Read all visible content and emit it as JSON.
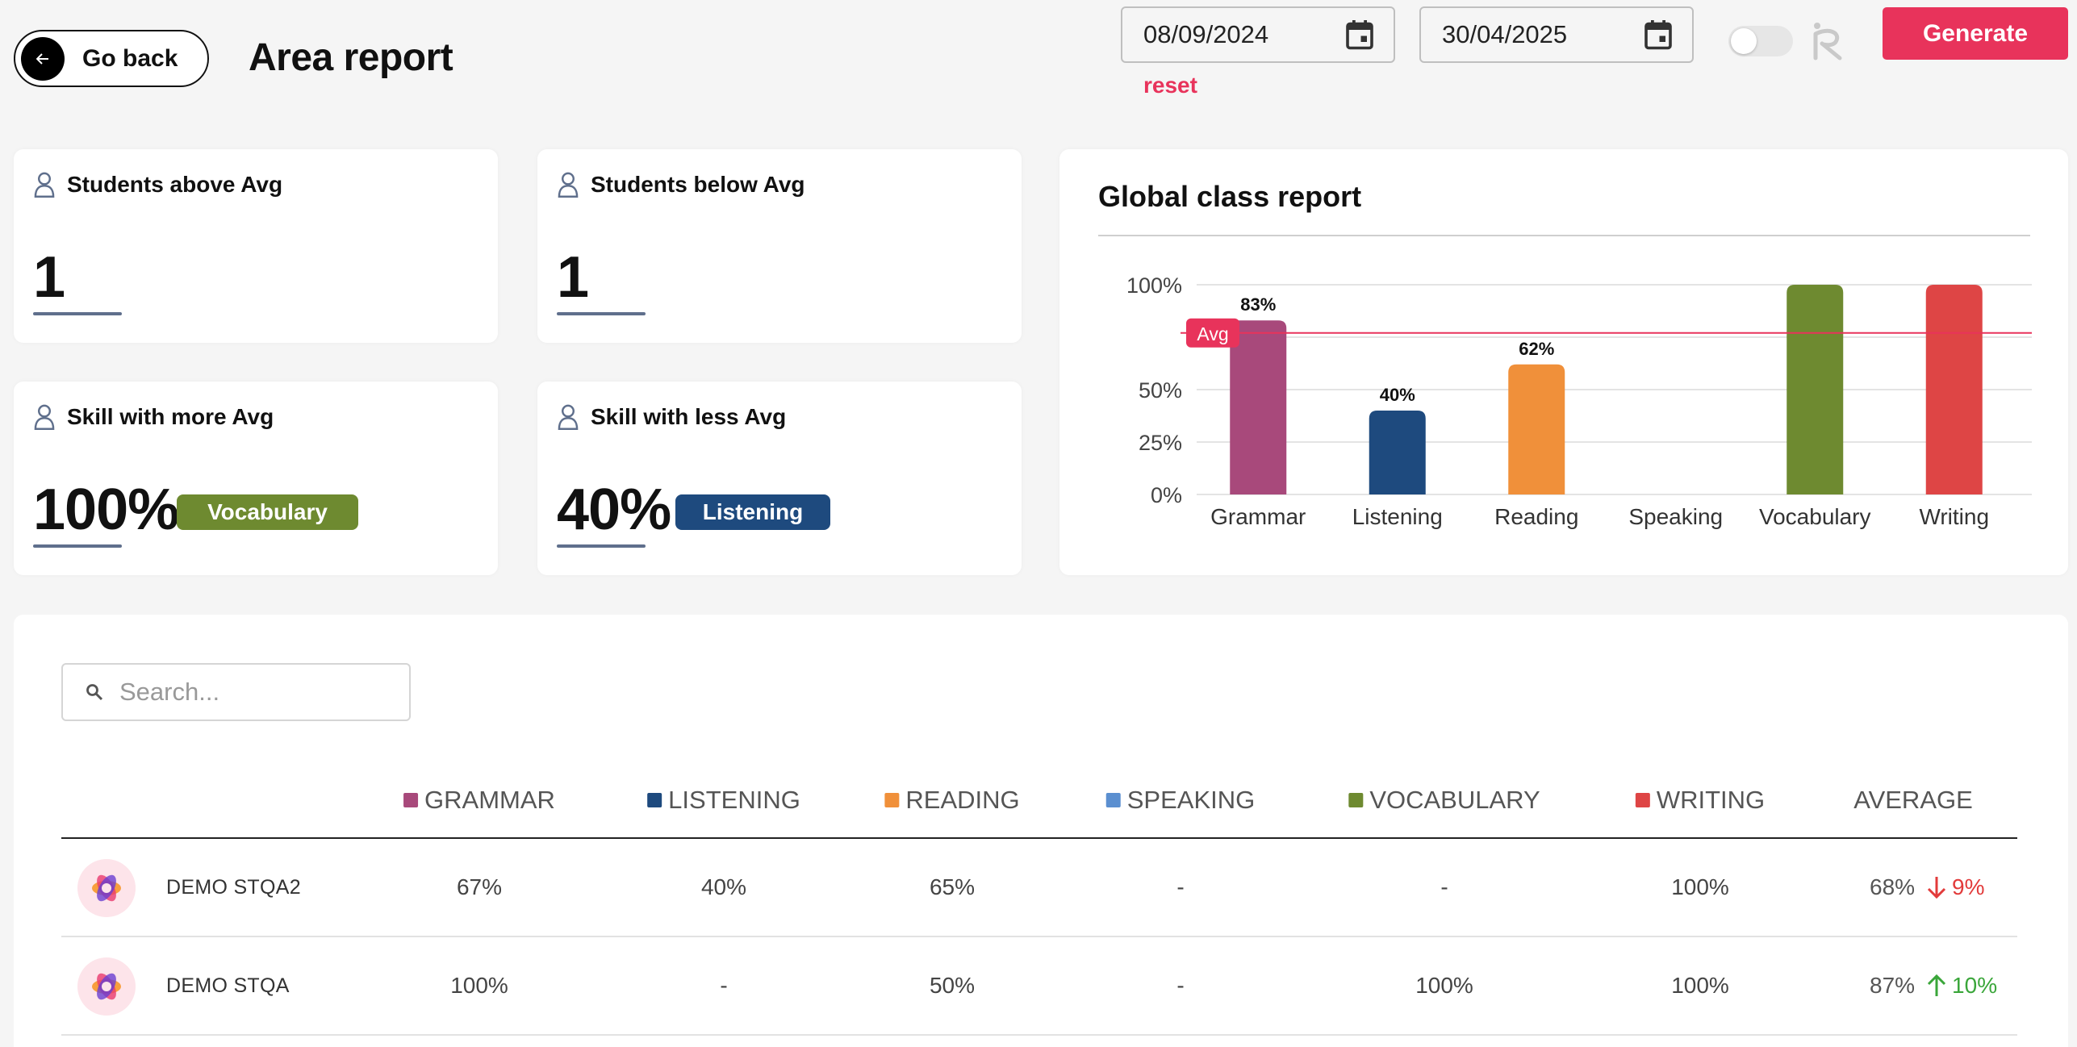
{
  "header": {
    "back_label": "Go back",
    "title": "Area report",
    "date_from": "08/09/2024",
    "date_to": "30/04/2025",
    "reset_label": "reset",
    "generate_label": "Generate",
    "toggle_on": false
  },
  "cards": {
    "above": {
      "label": "Students above Avg",
      "value": "1"
    },
    "below": {
      "label": "Students below Avg",
      "value": "1"
    },
    "more": {
      "label": "Skill with more Avg",
      "value": "100%",
      "skill": "Vocabulary"
    },
    "less": {
      "label": "Skill with less Avg",
      "value": "40%",
      "skill": "Listening"
    }
  },
  "colors": {
    "accent": "#e8335b",
    "grammar": "#a8497b",
    "listening": "#1e4a7e",
    "reading": "#f0903a",
    "speaking": "#5b8fd0",
    "vocabulary": "#6e8a30",
    "writing": "#de4545"
  },
  "chart_data": {
    "type": "bar",
    "title": "Global class report",
    "categories": [
      "Grammar",
      "Listening",
      "Reading",
      "Speaking",
      "Vocabulary",
      "Writing"
    ],
    "values": [
      83,
      40,
      62,
      null,
      100,
      100
    ],
    "data_labels": [
      "83%",
      "40%",
      "62%",
      "",
      "",
      ""
    ],
    "colors": [
      "#a8497b",
      "#1e4a7e",
      "#f0903a",
      "#5b8fd0",
      "#6e8a30",
      "#de4545"
    ],
    "ylim": [
      0,
      100
    ],
    "yticks": [
      0,
      25,
      50,
      100
    ],
    "ytick_labels": [
      "0%",
      "25%",
      "50%",
      "100%"
    ],
    "avg_line": {
      "label": "Avg",
      "value": 77
    },
    "grid": true
  },
  "table": {
    "search_placeholder": "Search...",
    "columns": [
      {
        "label": "GRAMMAR",
        "color": "#a8497b"
      },
      {
        "label": "LISTENING",
        "color": "#1e4a7e"
      },
      {
        "label": "READING",
        "color": "#f0903a"
      },
      {
        "label": "SPEAKING",
        "color": "#5b8fd0"
      },
      {
        "label": "VOCABULARY",
        "color": "#6e8a30"
      },
      {
        "label": "WRITING",
        "color": "#de4545"
      },
      {
        "label": "AVERAGE",
        "color": ""
      }
    ],
    "rows": [
      {
        "name": "DEMO STQA2",
        "values": [
          "67%",
          "40%",
          "65%",
          "-",
          "-",
          "100%"
        ],
        "average": "68%",
        "trend": "down",
        "trend_value": "9%"
      },
      {
        "name": "DEMO STQA",
        "values": [
          "100%",
          "-",
          "50%",
          "-",
          "100%",
          "100%"
        ],
        "average": "87%",
        "trend": "up",
        "trend_value": "10%"
      }
    ]
  }
}
